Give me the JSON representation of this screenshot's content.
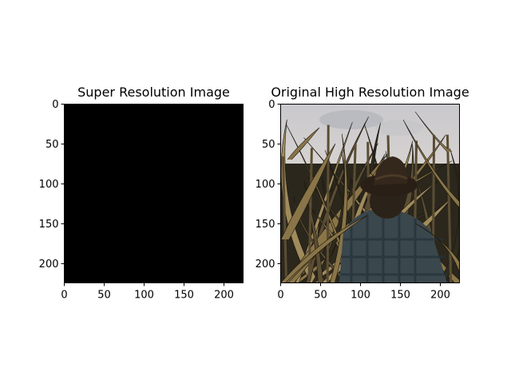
{
  "chart_data": [
    {
      "type": "image",
      "title": "Super Resolution Image",
      "xlim": [
        0,
        224
      ],
      "ylim": [
        224,
        0
      ],
      "xticks": [
        0,
        50,
        100,
        150,
        200
      ],
      "yticks": [
        0,
        50,
        100,
        150,
        200
      ],
      "image_content": "solid black",
      "fill_color": "#000000"
    },
    {
      "type": "image",
      "title": "Original High Resolution Image",
      "xlim": [
        0,
        224
      ],
      "ylim": [
        224,
        0
      ],
      "xticks": [
        0,
        50,
        100,
        150,
        200
      ],
      "yticks": [
        0,
        50,
        100,
        150,
        200
      ],
      "image_content": "photo: person in plaid shirt and hat standing among corn stalks under a cloudy sky",
      "palette": {
        "sky": "#d9d6d4",
        "sky_shadow": "#b9b8ba",
        "leaf_dark": "#2e2a1e",
        "leaf_mid": "#5b4d33",
        "leaf_light": "#8a7548",
        "leaf_edge": "#a08b5c",
        "hat": "#2a1f16",
        "shirt": "#3c4a4f",
        "ground": "#1e1c14"
      }
    }
  ]
}
